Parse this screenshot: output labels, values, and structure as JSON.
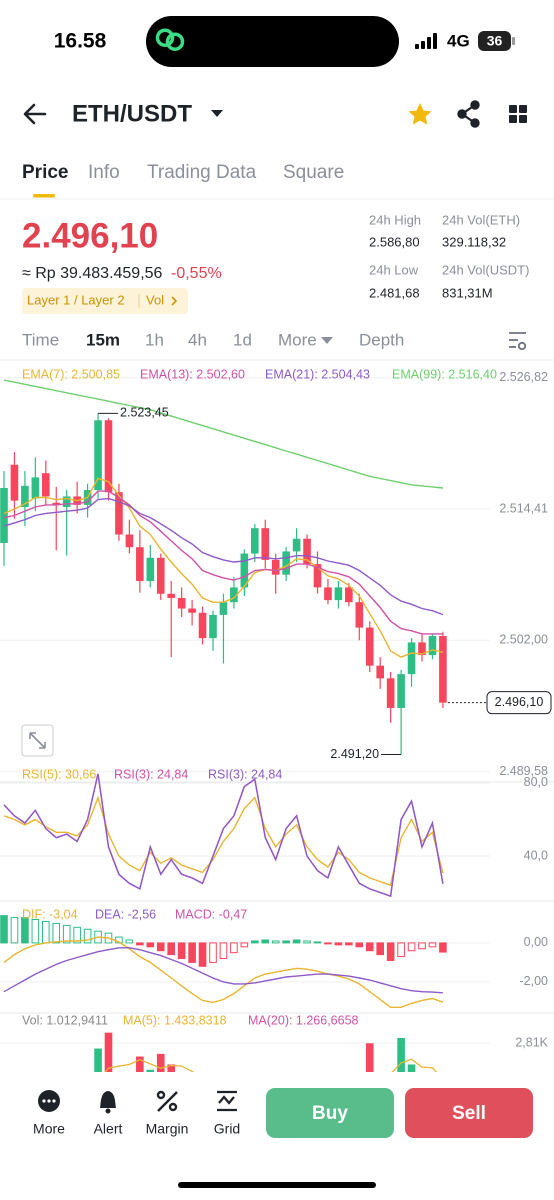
{
  "status_bar": {
    "time": "16.58",
    "network": "4G",
    "battery": "36"
  },
  "header": {
    "pair": "ETH/USDT"
  },
  "tabs": [
    "Price",
    "Info",
    "Trading Data",
    "Square"
  ],
  "ticker": {
    "last_price": "2.496,10",
    "idr_price": "≈ Rp 39.483.459,56",
    "change": "-0,55%",
    "tags": "Layer 1 / Layer 2",
    "vol_tag": "Vol"
  },
  "stats": [
    {
      "label": "24h High",
      "value": "2.586,80"
    },
    {
      "label": "24h Vol(ETH)",
      "value": "329.118,32"
    },
    {
      "label": "24h Low",
      "value": "2.481,68"
    },
    {
      "label": "24h Vol(USDT)",
      "value": "831,31M"
    }
  ],
  "timeframes": [
    "Time",
    "15m",
    "1h",
    "4h",
    "1d",
    "More",
    "Depth"
  ],
  "price_chart": {
    "type": "candlestick",
    "up_color": "#2ebd85",
    "down_color": "#f6465d",
    "ylim": [
      2488.6,
      2528.5
    ],
    "yticks": [
      {
        "value": 2526.82,
        "label": "2.526,82"
      },
      {
        "value": 2514.41,
        "label": "2.514,41"
      },
      {
        "value": 2502.0,
        "label": "2.502,00"
      },
      {
        "value": 2489.58,
        "label": "2.489,58"
      }
    ],
    "candles": {
      "open": [
        2511.2,
        2518.6,
        2514.6,
        2515.4,
        2517.8,
        2515.0,
        2514.6,
        2515.6,
        2514.8,
        2516.2,
        2522.8,
        2516.0,
        2512.0,
        2510.8,
        2507.6,
        2509.8,
        2506.4,
        2506.0,
        2505.0,
        2504.6,
        2502.2,
        2504.4,
        2505.6,
        2507.0,
        2510.2,
        2512.6,
        2509.6,
        2508.2,
        2510.4,
        2511.6,
        2509.2,
        2507.0,
        2505.8,
        2507.0,
        2505.6,
        2503.2,
        2499.6,
        2498.4,
        2495.6,
        2498.8,
        2501.8,
        2500.6,
        2502.4
      ],
      "high": [
        2518.0,
        2519.8,
        2518.0,
        2519.3,
        2519.0,
        2516.5,
        2516.2,
        2517.0,
        2516.8,
        2523.45,
        2523.0,
        2516.8,
        2513.4,
        2512.4,
        2511.0,
        2510.2,
        2507.6,
        2507.0,
        2505.8,
        2505.2,
        2504.8,
        2506.4,
        2508.0,
        2510.6,
        2513.0,
        2513.4,
        2510.2,
        2510.8,
        2512.6,
        2512.0,
        2510.4,
        2507.8,
        2507.6,
        2507.4,
        2506.4,
        2503.8,
        2500.4,
        2499.0,
        2499.2,
        2502.2,
        2502.6,
        2502.6,
        2502.8
      ],
      "low": [
        2509.0,
        2513.5,
        2512.8,
        2514.2,
        2514.8,
        2510.5,
        2510.0,
        2514.0,
        2513.6,
        2515.4,
        2515.2,
        2511.4,
        2510.2,
        2506.5,
        2507.0,
        2505.8,
        2500.4,
        2504.2,
        2503.4,
        2501.6,
        2501.0,
        2499.8,
        2505.0,
        2506.2,
        2509.4,
        2508.8,
        2506.4,
        2507.6,
        2509.4,
        2508.8,
        2506.4,
        2505.4,
        2505.0,
        2505.2,
        2502.0,
        2499.0,
        2497.4,
        2494.2,
        2491.2,
        2497.6,
        2500.0,
        2500.2,
        2495.6
      ],
      "close": [
        2516.4,
        2515.2,
        2516.6,
        2517.4,
        2515.6,
        2514.8,
        2515.6,
        2514.8,
        2516.2,
        2522.8,
        2516.0,
        2512.0,
        2510.8,
        2507.6,
        2509.8,
        2506.4,
        2506.0,
        2505.0,
        2504.6,
        2502.2,
        2504.4,
        2505.6,
        2507.0,
        2510.2,
        2512.6,
        2509.6,
        2508.2,
        2510.4,
        2511.6,
        2509.2,
        2507.0,
        2505.8,
        2507.0,
        2505.6,
        2503.2,
        2499.6,
        2498.4,
        2495.6,
        2498.8,
        2501.8,
        2500.6,
        2502.4,
        2496.1
      ]
    },
    "series": [
      {
        "name": "EMA(7): 2.500,85",
        "color": "#e8b530",
        "values": [
          2514.0,
          2514.4,
          2514.9,
          2515.5,
          2515.5,
          2515.3,
          2515.4,
          2515.2,
          2515.5,
          2517.3,
          2517.0,
          2515.7,
          2514.5,
          2512.8,
          2512.0,
          2510.6,
          2509.4,
          2508.3,
          2507.3,
          2506.0,
          2505.6,
          2505.6,
          2506.0,
          2507.1,
          2508.4,
          2508.7,
          2508.6,
          2509.0,
          2509.7,
          2509.6,
          2508.9,
          2508.1,
          2507.8,
          2507.2,
          2506.2,
          2504.5,
          2502.9,
          2501.0,
          2500.4,
          2500.8,
          2500.7,
          2501.1,
          2500.85
        ]
      },
      {
        "name": "EMA(13): 2.502,60",
        "color": "#d052a8",
        "values": [
          2513.6,
          2513.8,
          2514.2,
          2514.6,
          2514.8,
          2514.8,
          2514.9,
          2514.9,
          2515.1,
          2516.1,
          2516.1,
          2515.5,
          2514.8,
          2513.8,
          2513.2,
          2512.3,
          2511.4,
          2510.5,
          2509.7,
          2508.6,
          2508.2,
          2507.9,
          2507.7,
          2508.0,
          2508.6,
          2508.7,
          2508.6,
          2508.8,
          2509.2,
          2509.2,
          2508.9,
          2508.5,
          2508.3,
          2508.0,
          2507.3,
          2506.2,
          2505.1,
          2503.8,
          2503.1,
          2502.9,
          2502.6,
          2502.6,
          2502.6
        ]
      },
      {
        "name": "EMA(21): 2.504,43",
        "color": "#8e5ac8",
        "values": [
          2512.8,
          2513.1,
          2513.4,
          2513.8,
          2514.0,
          2514.1,
          2514.2,
          2514.3,
          2514.5,
          2515.3,
          2515.4,
          2515.1,
          2514.7,
          2514.0,
          2513.6,
          2513.0,
          2512.4,
          2511.7,
          2511.1,
          2510.3,
          2509.9,
          2509.6,
          2509.4,
          2509.5,
          2509.8,
          2509.8,
          2509.7,
          2509.8,
          2510.0,
          2510.0,
          2509.8,
          2509.5,
          2509.3,
          2509.1,
          2508.6,
          2507.9,
          2507.2,
          2506.3,
          2505.7,
          2505.4,
          2505.0,
          2504.8,
          2504.43
        ]
      },
      {
        "name": "EMA(99): 2.516,40",
        "color": "#6fcf6f",
        "values": [
          2526.6,
          2526.4,
          2526.2,
          2526.0,
          2525.8,
          2525.6,
          2525.4,
          2525.2,
          2525.0,
          2524.8,
          2524.6,
          2524.4,
          2524.2,
          2524.0,
          2523.8,
          2523.5,
          2523.2,
          2522.9,
          2522.6,
          2522.3,
          2522.0,
          2521.7,
          2521.4,
          2521.1,
          2520.8,
          2520.5,
          2520.2,
          2519.9,
          2519.6,
          2519.3,
          2519.0,
          2518.7,
          2518.4,
          2518.1,
          2517.8,
          2517.5,
          2517.3,
          2517.1,
          2516.9,
          2516.7,
          2516.6,
          2516.5,
          2516.4
        ]
      }
    ],
    "high_label": {
      "value": 2523.45,
      "label": "2.523,45"
    },
    "low_label": {
      "value": 2491.2,
      "label": "2.491,20"
    },
    "last_label": {
      "value": 2496.1,
      "label": "2.496,10"
    }
  },
  "rsi_chart": {
    "type": "line",
    "ylim": [
      17,
      83.8
    ],
    "yticks": [
      {
        "value": 80,
        "label": "80,0"
      },
      {
        "value": 40,
        "label": "40,0"
      }
    ],
    "series": [
      {
        "name": "RSI(5): 30,66",
        "color": "#e8b530",
        "values": [
          62,
          60,
          57,
          60,
          56,
          53,
          53,
          51,
          57,
          72,
          52,
          40,
          35,
          32,
          42,
          36,
          39,
          35,
          33,
          31,
          38,
          48,
          55,
          66,
          72,
          55,
          45,
          52,
          57,
          45,
          38,
          34,
          42,
          38,
          31,
          28,
          26,
          24,
          50,
          60,
          48,
          53,
          30.66
        ]
      },
      {
        "name": "RSI(3): 24,84",
        "color": "#d052a8",
        "values": [
          68,
          62,
          58,
          65,
          55,
          50,
          52,
          48,
          60,
          85,
          45,
          30,
          25,
          22,
          45,
          30,
          38,
          30,
          28,
          25,
          40,
          55,
          62,
          78,
          82,
          50,
          38,
          55,
          62,
          40,
          32,
          28,
          45,
          35,
          25,
          22,
          20,
          18,
          60,
          70,
          45,
          58,
          24.84
        ]
      },
      {
        "name": "RSI(3): 24,84",
        "color": "#8e5ac8",
        "values": [
          68,
          62,
          58,
          65,
          55,
          50,
          52,
          48,
          60,
          85,
          45,
          30,
          25,
          22,
          45,
          30,
          38,
          30,
          28,
          25,
          40,
          55,
          62,
          78,
          82,
          50,
          38,
          55,
          62,
          40,
          32,
          28,
          45,
          35,
          25,
          22,
          20,
          18,
          60,
          70,
          45,
          58,
          24.84
        ]
      }
    ]
  },
  "macd_chart": {
    "type": "macd",
    "ylim": [
      -3.44,
      1.79
    ],
    "yticks": [
      {
        "value": 0,
        "label": "0,00"
      },
      {
        "value": -2,
        "label": "-2,00"
      }
    ],
    "series": [
      {
        "name": "DIF: -3,04",
        "color": "#e8b530",
        "values": [
          -1.0,
          -0.6,
          -0.3,
          -0.1,
          0.0,
          0.05,
          0.1,
          0.1,
          0.15,
          0.3,
          0.25,
          0.05,
          -0.3,
          -0.7,
          -1.0,
          -1.4,
          -1.8,
          -2.2,
          -2.6,
          -2.95,
          -3.05,
          -2.9,
          -2.6,
          -2.2,
          -1.8,
          -1.6,
          -1.5,
          -1.4,
          -1.3,
          -1.35,
          -1.45,
          -1.6,
          -1.7,
          -1.85,
          -2.1,
          -2.5,
          -2.9,
          -3.3,
          -3.3,
          -3.1,
          -2.95,
          -2.85,
          -3.04
        ]
      },
      {
        "name": "DEA: -2,56",
        "color": "#8e5ac8",
        "values": [
          -2.5,
          -2.2,
          -1.9,
          -1.6,
          -1.35,
          -1.1,
          -0.9,
          -0.75,
          -0.6,
          -0.45,
          -0.35,
          -0.25,
          -0.25,
          -0.35,
          -0.5,
          -0.65,
          -0.85,
          -1.05,
          -1.3,
          -1.55,
          -1.8,
          -2.0,
          -2.1,
          -2.1,
          -2.05,
          -1.95,
          -1.85,
          -1.75,
          -1.7,
          -1.65,
          -1.6,
          -1.6,
          -1.65,
          -1.7,
          -1.8,
          -1.9,
          -2.05,
          -2.2,
          -2.35,
          -2.45,
          -2.5,
          -2.52,
          -2.56
        ]
      }
    ],
    "histogram": {
      "name": "MACD: -0,47",
      "color": "#d052a8",
      "values": [
        1.4,
        1.3,
        1.3,
        1.2,
        1.1,
        1.0,
        0.9,
        0.8,
        0.7,
        0.6,
        0.5,
        0.3,
        0.15,
        -0.1,
        -0.2,
        -0.4,
        -0.6,
        -0.8,
        -1.0,
        -1.2,
        -1.0,
        -0.8,
        -0.5,
        -0.2,
        0.1,
        0.15,
        0.1,
        0.1,
        0.15,
        0.1,
        0.05,
        -0.05,
        -0.1,
        -0.1,
        -0.2,
        -0.4,
        -0.6,
        -0.9,
        -0.7,
        -0.4,
        -0.3,
        -0.2,
        -0.47
      ]
    }
  },
  "volume_chart": {
    "type": "bar",
    "ylim": [
      0,
      3300
    ],
    "yticks": [
      {
        "value": 2810,
        "label": "2,81K"
      }
    ],
    "bars": {
      "name": "Vol: 1.012,9411",
      "color": "#888888",
      "values": [
        1500,
        1200,
        1100,
        1300,
        900,
        1000,
        1100,
        1000,
        1400,
        2600,
        3200,
        1500,
        1300,
        2300,
        1800,
        2400,
        2000,
        1200,
        1000,
        1100,
        1200,
        1000,
        1100,
        1300,
        1500,
        1200,
        1000,
        1000,
        1100,
        900,
        1000,
        900,
        800,
        900,
        1300,
        2800,
        1500,
        1700,
        3000,
        2000,
        1500,
        1200,
        1012.9411
      ]
    },
    "series": [
      {
        "name": "MA(5): 1.433,8318",
        "color": "#e8b530",
        "values": [
          1300,
          1300,
          1250,
          1300,
          1200,
          1100,
          1080,
          1060,
          1080,
          1420,
          1860,
          1940,
          2000,
          2180,
          2020,
          1860,
          1960,
          1940,
          1740,
          1520,
          1300,
          1100,
          1080,
          1140,
          1220,
          1260,
          1220,
          1200,
          1160,
          1040,
          1040,
          1000,
          940,
          920,
          980,
          1340,
          1460,
          1640,
          2060,
          2200,
          1900,
          1880,
          1433.8318
        ]
      },
      {
        "name": "MA(20): 1.266,6658",
        "color": "#d052a8",
        "values": [
          1300,
          1300,
          1300,
          1290,
          1280,
          1270,
          1260,
          1250,
          1250,
          1300,
          1380,
          1400,
          1410,
          1450,
          1470,
          1510,
          1540,
          1540,
          1530,
          1530,
          1520,
          1510,
          1510,
          1510,
          1510,
          1500,
          1490,
          1470,
          1440,
          1400,
          1300,
          1260,
          1230,
          1200,
          1180,
          1200,
          1210,
          1230,
          1280,
          1300,
          1290,
          1280,
          1266.6658
        ]
      }
    ]
  },
  "bottom_bar": {
    "actions": [
      "More",
      "Alert",
      "Margin",
      "Grid"
    ],
    "buy": "Buy",
    "sell": "Sell"
  }
}
